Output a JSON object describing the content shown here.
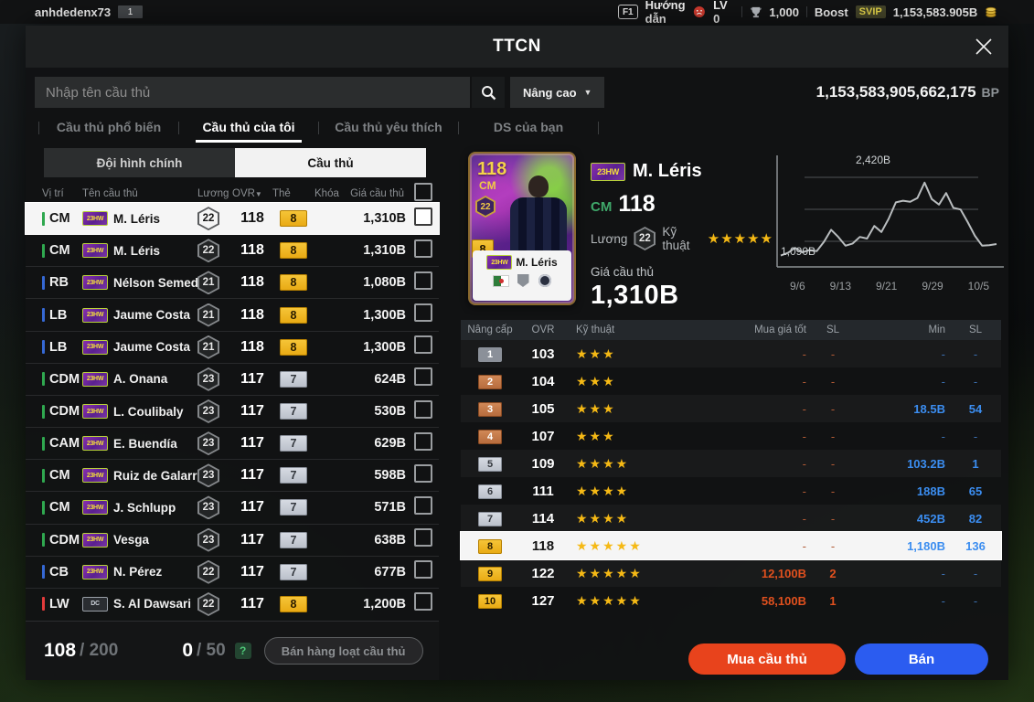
{
  "colors": {
    "accent_buy": "#e8431c",
    "accent_sell": "#2b5cf0",
    "gold": "#f0b41e",
    "silver": "#c9cdd6",
    "bronze": "#c5794a",
    "star": "#f5b915",
    "value_blue": "#3b8df0",
    "value_red": "#e0501e",
    "pos": {
      "green": "#2fa84f",
      "blue": "#3568d4",
      "red": "#e23b3b"
    }
  },
  "top_bar": {
    "username": "anhdedenx73",
    "level_badge": "1",
    "help_key": "F1",
    "help_label": "Hướng dẫn",
    "lv_label": "LV 0",
    "tickets": "1,000",
    "boost_label": "Boost",
    "svip_label": "SVIP",
    "money": "1,153,583.905B"
  },
  "header": {
    "title": "TTCN"
  },
  "search": {
    "placeholder": "Nhập tên cầu thủ",
    "advanced_label": "Nâng cao",
    "bp_amount": "1,153,583,905,662,175",
    "bp_suffix": "BP"
  },
  "tabs": [
    {
      "label": "Cầu thủ phổ biến",
      "active": false
    },
    {
      "label": "Cầu thủ của tôi",
      "active": true
    },
    {
      "label": "Cầu thủ yêu thích",
      "active": false
    },
    {
      "label": "DS của bạn",
      "active": false
    }
  ],
  "left": {
    "subtabs": [
      {
        "label": "Đội hình chính",
        "active": false
      },
      {
        "label": "Cầu thủ",
        "active": true
      }
    ],
    "columns": [
      "Vị trí",
      "Tên cầu thủ",
      "Lương",
      "OVR",
      "Thẻ",
      "Khóa",
      "Giá cầu thủ"
    ],
    "sort_arrow": "▼",
    "rows": [
      {
        "pos": "CM",
        "pos_color": "green",
        "badge": "23HW",
        "name": "M. Léris",
        "salary": "22",
        "ovr": "118",
        "card": "8",
        "card_tier": "gold",
        "price": "1,310B",
        "selected": true
      },
      {
        "pos": "CM",
        "pos_color": "green",
        "badge": "23HW",
        "name": "M. Léris",
        "salary": "22",
        "ovr": "118",
        "card": "8",
        "card_tier": "gold",
        "price": "1,310B",
        "selected": false
      },
      {
        "pos": "RB",
        "pos_color": "blue",
        "badge": "23HW",
        "name": "Nélson Semedo",
        "salary": "21",
        "ovr": "118",
        "card": "8",
        "card_tier": "gold",
        "price": "1,080B",
        "selected": false
      },
      {
        "pos": "LB",
        "pos_color": "blue",
        "badge": "23HW",
        "name": "Jaume Costa",
        "salary": "21",
        "ovr": "118",
        "card": "8",
        "card_tier": "gold",
        "price": "1,300B",
        "selected": false
      },
      {
        "pos": "LB",
        "pos_color": "blue",
        "badge": "23HW",
        "name": "Jaume Costa",
        "salary": "21",
        "ovr": "118",
        "card": "8",
        "card_tier": "gold",
        "price": "1,300B",
        "selected": false
      },
      {
        "pos": "CDM",
        "pos_color": "green",
        "badge": "23HW",
        "name": "A. Onana",
        "salary": "23",
        "ovr": "117",
        "card": "7",
        "card_tier": "silver",
        "price": "624B",
        "selected": false
      },
      {
        "pos": "CDM",
        "pos_color": "green",
        "badge": "23HW",
        "name": "L. Coulibaly",
        "salary": "23",
        "ovr": "117",
        "card": "7",
        "card_tier": "silver",
        "price": "530B",
        "selected": false
      },
      {
        "pos": "CAM",
        "pos_color": "green",
        "badge": "23HW",
        "name": "E. Buendía",
        "salary": "23",
        "ovr": "117",
        "card": "7",
        "card_tier": "silver",
        "price": "629B",
        "selected": false
      },
      {
        "pos": "CM",
        "pos_color": "green",
        "badge": "23HW",
        "name": "Ruiz de Galarreta",
        "salary": "23",
        "ovr": "117",
        "card": "7",
        "card_tier": "silver",
        "price": "598B",
        "selected": false
      },
      {
        "pos": "CM",
        "pos_color": "green",
        "badge": "23HW",
        "name": "J. Schlupp",
        "salary": "23",
        "ovr": "117",
        "card": "7",
        "card_tier": "silver",
        "price": "571B",
        "selected": false
      },
      {
        "pos": "CDM",
        "pos_color": "green",
        "badge": "23HW",
        "name": "Vesga",
        "salary": "23",
        "ovr": "117",
        "card": "7",
        "card_tier": "silver",
        "price": "638B",
        "selected": false
      },
      {
        "pos": "CB",
        "pos_color": "blue",
        "badge": "23HW",
        "name": "N. Pérez",
        "salary": "22",
        "ovr": "117",
        "card": "7",
        "card_tier": "silver",
        "price": "677B",
        "selected": false
      },
      {
        "pos": "LW",
        "pos_color": "red",
        "badge": "DC",
        "name": "S. Al Dawsari",
        "salary": "22",
        "ovr": "117",
        "card": "8",
        "card_tier": "gold",
        "price": "1,200B",
        "selected": false
      }
    ],
    "footer": {
      "owned": "108",
      "owned_max": "/ 200",
      "selected": "0",
      "selected_max": "/ 50",
      "help_badge": "?",
      "bulk_sell_label": "Bán hàng loạt cầu thủ"
    }
  },
  "detail": {
    "badge": "23HW",
    "name": "M. Léris",
    "position": "CM",
    "ovr": "118",
    "salary_label": "Lương",
    "salary": "22",
    "skill_label": "Kỹ thuật",
    "stars": 5,
    "price_label": "Giá cầu thủ",
    "price": "1,310B",
    "card": {
      "ovr": "118",
      "pos": "CM",
      "salary": "22",
      "level": "8",
      "badge": "23HW",
      "name": "M. Léris"
    }
  },
  "chart_data": {
    "type": "line",
    "title": "",
    "xlabel": "",
    "ylabel": "",
    "unit": "B",
    "x_ticks": [
      "9/6",
      "9/13",
      "9/21",
      "9/29",
      "10/5"
    ],
    "values": [
      1090,
      1140,
      1230,
      1150,
      1190,
      1170,
      1340,
      1560,
      1430,
      1270,
      1310,
      1430,
      1400,
      1630,
      1520,
      1760,
      2060,
      2090,
      2070,
      2140,
      2420,
      2120,
      2020,
      2230,
      1960,
      1930,
      1700,
      1450,
      1270,
      1280,
      1300
    ],
    "ylim": [
      950,
      2650
    ],
    "max_label": "2,420B",
    "min_label": "1,090B",
    "grid": true,
    "legend": false
  },
  "upgrade_table": {
    "columns": [
      "Nâng cấp",
      "OVR",
      "Kỹ thuật",
      "Mua giá tốt",
      "SL",
      "Min",
      "SL"
    ],
    "rows": [
      {
        "level": "1",
        "tier": "grey",
        "ovr": "103",
        "stars": 3,
        "buy": "-",
        "buy_sl": "-",
        "min": "-",
        "min_sl": "-",
        "selected": false
      },
      {
        "level": "2",
        "tier": "bronze",
        "ovr": "104",
        "stars": 3,
        "buy": "-",
        "buy_sl": "-",
        "min": "-",
        "min_sl": "-",
        "selected": false
      },
      {
        "level": "3",
        "tier": "bronze",
        "ovr": "105",
        "stars": 3,
        "buy": "-",
        "buy_sl": "-",
        "min": "18.5B",
        "min_sl": "54",
        "selected": false
      },
      {
        "level": "4",
        "tier": "bronze",
        "ovr": "107",
        "stars": 3,
        "buy": "-",
        "buy_sl": "-",
        "min": "-",
        "min_sl": "-",
        "selected": false
      },
      {
        "level": "5",
        "tier": "silver",
        "ovr": "109",
        "stars": 4,
        "buy": "-",
        "buy_sl": "-",
        "min": "103.2B",
        "min_sl": "1",
        "selected": false
      },
      {
        "level": "6",
        "tier": "silver",
        "ovr": "111",
        "stars": 4,
        "buy": "-",
        "buy_sl": "-",
        "min": "188B",
        "min_sl": "65",
        "selected": false
      },
      {
        "level": "7",
        "tier": "silver",
        "ovr": "114",
        "stars": 4,
        "buy": "-",
        "buy_sl": "-",
        "min": "452B",
        "min_sl": "82",
        "selected": false
      },
      {
        "level": "8",
        "tier": "gold",
        "ovr": "118",
        "stars": 5,
        "buy": "-",
        "buy_sl": "-",
        "min": "1,180B",
        "min_sl": "136",
        "selected": true
      },
      {
        "level": "9",
        "tier": "gold",
        "ovr": "122",
        "stars": 5,
        "buy": "12,100B",
        "buy_sl": "2",
        "min": "-",
        "min_sl": "-",
        "selected": false
      },
      {
        "level": "10",
        "tier": "gold",
        "ovr": "127",
        "stars": 5,
        "buy": "58,100B",
        "buy_sl": "1",
        "min": "-",
        "min_sl": "-",
        "selected": false
      }
    ]
  },
  "actions": {
    "buy_label": "Mua cầu thủ",
    "sell_label": "Bán"
  }
}
